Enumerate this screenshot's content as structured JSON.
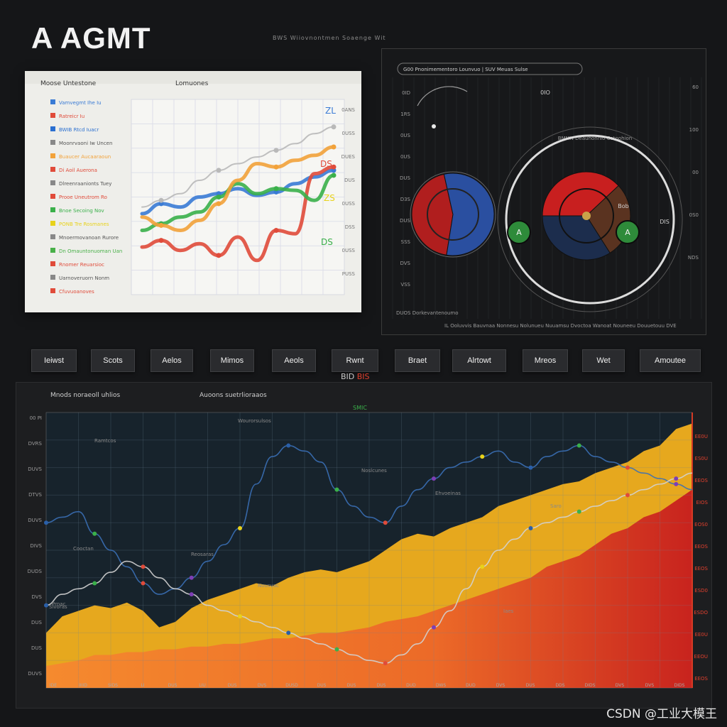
{
  "app": {
    "title": "A AGMT",
    "top_caption": "BWS Wiiovnontmen Soaenge Wit",
    "watermark": "CSDN @工业大模王"
  },
  "light_chart": {
    "title_left": "Moose Untestone",
    "title_right": "Lomuones",
    "legend": [
      {
        "label": "Vamvegmt Ihe Iu",
        "color": "#3a7bd5"
      },
      {
        "label": "Ratreicr Iu",
        "color": "#e04b3a"
      },
      {
        "label": "BWIB Rtcd Iuacr",
        "color": "#2a6fd0"
      },
      {
        "label": "Moonrvaoni Iw Uncen",
        "color": "#888888"
      },
      {
        "label": "Buaucer Aucaaraoun",
        "color": "#f2a23a"
      },
      {
        "label": "Di Aoil Auerona",
        "color": "#e04b3a"
      },
      {
        "label": "Dlreenraanionts Tuey",
        "color": "#888888"
      },
      {
        "label": "Prooe Uneutrom Ro",
        "color": "#e04b3a"
      },
      {
        "label": "Bnoe Secoing Nov",
        "color": "#3ab04a"
      },
      {
        "label": "PONB Tre Rosmanes",
        "color": "#e8d21a"
      },
      {
        "label": "Mnoermovanoan Rurore",
        "color": "#888888"
      },
      {
        "label": "Dn Omauntonuoman Uan",
        "color": "#49b049"
      },
      {
        "label": "Rnomer Reuarsioc",
        "color": "#e04b3a"
      },
      {
        "label": "Uarnoveruorn Nonm",
        "color": "#888888"
      },
      {
        "label": "Cfuvuoanoves",
        "color": "#e04b3a"
      }
    ],
    "right_ticks": [
      "0ANS",
      "0USS",
      "DUES",
      "DUS",
      "0USS",
      "DSS",
      "0USS",
      "PUSS"
    ],
    "annotations": [
      "ZL",
      "DS",
      "ZS",
      "DS"
    ],
    "series": [
      {
        "name": "Vamvegmt Ihe Iu",
        "color": "#3a7bd5",
        "x": [
          0,
          1,
          2,
          3,
          4,
          5,
          6,
          7,
          8,
          9,
          10
        ],
        "y": [
          40,
          46,
          44,
          50,
          52,
          55,
          51,
          53,
          58,
          62,
          66
        ]
      },
      {
        "name": "Ratreicr Iu",
        "color": "#e04b3a",
        "x": [
          0,
          1,
          2,
          3,
          4,
          5,
          6,
          7,
          8,
          9,
          10
        ],
        "y": [
          20,
          24,
          18,
          22,
          15,
          26,
          12,
          30,
          28,
          64,
          68
        ]
      },
      {
        "name": "Bnoe Secoing Nov",
        "color": "#3ab04a",
        "x": [
          0,
          1,
          2,
          3,
          4,
          5,
          6,
          7,
          8,
          9,
          10
        ],
        "y": [
          30,
          34,
          38,
          41,
          50,
          58,
          52,
          55,
          54,
          48,
          63
        ]
      },
      {
        "name": "Buaucer Aucaaraoun",
        "color": "#f2a23a",
        "x": [
          0,
          1,
          2,
          3,
          4,
          5,
          6,
          7,
          8,
          9,
          10
        ],
        "y": [
          38,
          33,
          30,
          36,
          46,
          60,
          70,
          68,
          72,
          75,
          80
        ]
      },
      {
        "name": "Moonrvaoni Iw Uncen",
        "color": "#b9b9b9",
        "x": [
          0,
          1,
          2,
          3,
          4,
          5,
          6,
          7,
          8,
          9,
          10
        ],
        "y": [
          44,
          48,
          52,
          60,
          66,
          70,
          74,
          78,
          82,
          88,
          92
        ]
      }
    ]
  },
  "gauge_panel": {
    "header": "G00 Pnonimementoro Lounvuo | SUV Meuas Sulse",
    "center_label": "0IO",
    "left_ticks": [
      "0ID",
      "1RS",
      "0US",
      "0US",
      "DUS",
      "D3S",
      "DUS",
      "SSS",
      "DVS",
      "VSS"
    ],
    "right_ticks": [
      "60",
      "100",
      "00",
      "0S0",
      "NDS"
    ],
    "bottom_caption": "DUOS Dorkevantenoumo",
    "footer": "IL Ooluvvis Bauvnaa Nonnesu Nolunueu Nuuamsu Dvoctoa Wanoat Nouneeu Douuetouu DVE",
    "arc_caption": "BMMN Deauhonnlo Cotoohion",
    "gauges": [
      {
        "name": "Left Gauge",
        "slices": [
          {
            "label": "Red",
            "value": 44,
            "color": "#b01e1e"
          },
          {
            "label": "Blue",
            "value": 56,
            "color": "#2a4fa0"
          }
        ],
        "side": "A",
        "side_color": "#2e8b3a"
      },
      {
        "name": "Right Gauge",
        "slices": [
          {
            "label": "Red",
            "value": 38,
            "color": "#c81f1f"
          },
          {
            "label": "Brown",
            "value": 28,
            "color": "#5a3320"
          },
          {
            "label": "Navy",
            "value": 34,
            "color": "#1c2d4d"
          }
        ],
        "side": "A",
        "side_color": "#2e8b3a"
      }
    ],
    "badges": [
      "Bob",
      "DIS"
    ]
  },
  "tabs": [
    "Ieiwst",
    "Scots",
    "Aelos",
    "Mimos",
    "Aeols",
    "Rwnt",
    "Braet",
    "Alrtowt",
    "Mreos",
    "Wet",
    "Amoutee"
  ],
  "subtab": {
    "part_a": "BID",
    "part_b": "BIS"
  },
  "big_chart": {
    "title": "Mnods noraeoll uhlios",
    "subtitle": "Auoons suetrlioraaos",
    "top_marker": "SMIC",
    "left_ticks": [
      "00 PI",
      "DVRS",
      "DUVS",
      "DTVS",
      "DUVS",
      "DIVS",
      "DUDS",
      "DVS",
      "DUS",
      "DUS",
      "DUVS"
    ],
    "right_ticks": [
      "EE0U",
      "ES0U",
      "EEOS",
      "EIOS",
      "EOS0",
      "EEOS",
      "EEOS",
      "ESD0",
      "ESDO",
      "EE0U",
      "EEOU",
      "EEOS"
    ],
    "x_ticks": [
      "IDE",
      "IIIID",
      "SIDS",
      "LI",
      "DUS",
      "LIU",
      "DUS",
      "DVS",
      "DUSD",
      "DUS",
      "DUS",
      "DUS",
      "DUD",
      "DWS",
      "DUD",
      "DVS",
      "DUS",
      "DDS",
      "DIDS",
      "DVS",
      "DVS",
      "DIDS"
    ],
    "annotations": [
      "Wourorsulsos",
      "Ramtcos",
      "Noslcunes",
      "Ehvoeinas",
      "Cooctan",
      "Reosaras",
      "Nousvac",
      "Sivoras",
      "Prnac",
      "Iaes",
      "Saro"
    ],
    "chart_data": {
      "type": "area",
      "x": [
        0,
        1,
        2,
        3,
        4,
        5,
        6,
        7,
        8,
        9,
        10,
        11,
        12,
        13,
        14,
        15,
        16,
        17,
        18,
        19,
        20,
        21,
        22,
        23,
        24,
        25,
        26,
        27,
        28,
        29,
        30,
        31,
        32,
        33,
        34,
        35,
        36,
        37,
        38,
        39,
        40
      ],
      "series": [
        {
          "name": "",
          "color": "#e6a81e",
          "values": [
            20,
            26,
            28,
            30,
            29,
            31,
            28,
            22,
            24,
            29,
            32,
            34,
            36,
            38,
            37,
            40,
            42,
            43,
            42,
            44,
            46,
            50,
            54,
            56,
            55,
            58,
            60,
            62,
            66,
            68,
            70,
            72,
            74,
            75,
            78,
            80,
            82,
            86,
            88,
            94,
            96
          ]
        },
        {
          "name": "",
          "color": "#ef6a2a",
          "values": [
            8,
            9,
            10,
            12,
            12,
            13,
            13,
            14,
            14,
            15,
            15,
            16,
            16,
            17,
            18,
            18,
            19,
            20,
            20,
            21,
            22,
            24,
            25,
            26,
            28,
            30,
            32,
            34,
            36,
            38,
            40,
            44,
            46,
            48,
            52,
            56,
            58,
            62,
            64,
            68,
            72
          ]
        },
        {
          "name": "",
          "color": "#3a6fb5",
          "values": [
            60,
            62,
            64,
            56,
            50,
            44,
            38,
            34,
            36,
            40,
            46,
            52,
            58,
            74,
            84,
            88,
            86,
            82,
            72,
            66,
            62,
            60,
            66,
            72,
            76,
            80,
            82,
            84,
            86,
            82,
            80,
            84,
            86,
            88,
            84,
            82,
            80,
            78,
            76,
            74,
            72
          ]
        },
        {
          "name": "",
          "color": "#d2d2d2",
          "values": [
            30,
            34,
            36,
            38,
            42,
            46,
            44,
            40,
            36,
            34,
            30,
            28,
            26,
            24,
            22,
            20,
            18,
            16,
            14,
            12,
            10,
            9,
            12,
            16,
            22,
            28,
            36,
            44,
            50,
            54,
            58,
            60,
            62,
            64,
            66,
            68,
            70,
            72,
            74,
            76,
            78
          ]
        }
      ],
      "ylim": [
        0,
        100
      ],
      "grid": true
    }
  }
}
